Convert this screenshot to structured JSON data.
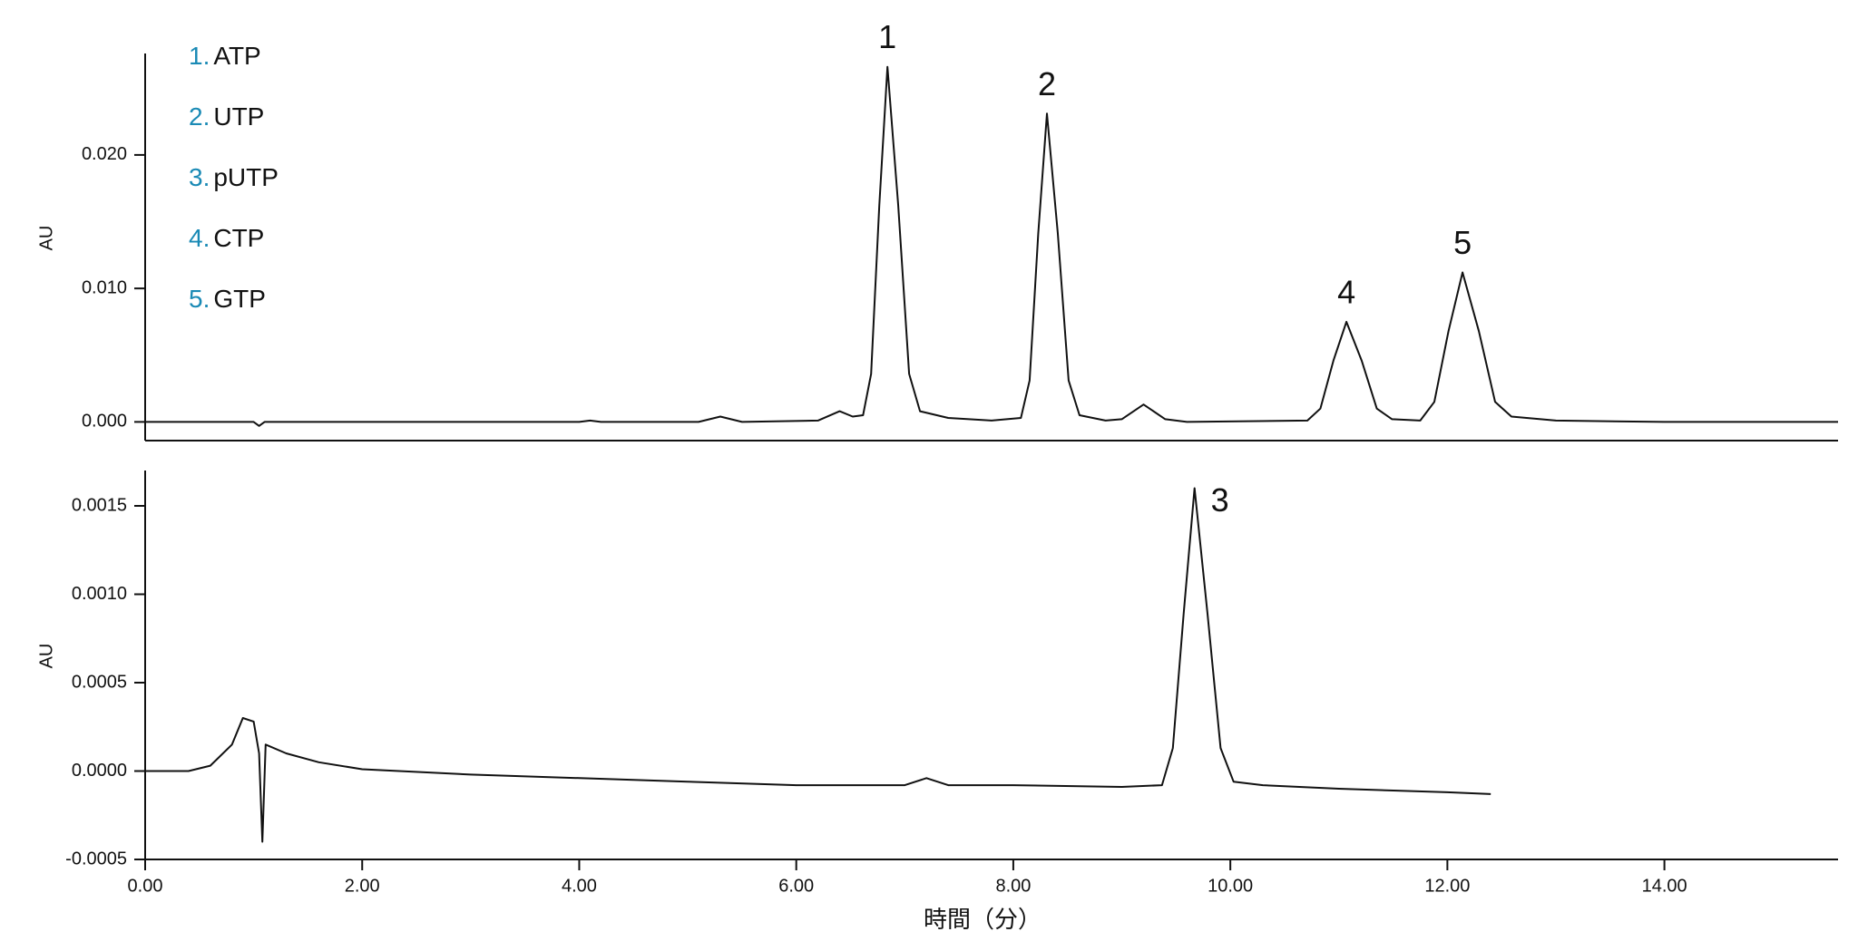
{
  "chart_data": [
    {
      "type": "line",
      "y_label": "AU",
      "xlim": [
        0,
        15.6
      ],
      "ylim": [
        -0.0014,
        0.0276
      ],
      "yticks": [
        {
          "value": 0,
          "label": "0.000"
        },
        {
          "value": 0.01,
          "label": "0.010"
        },
        {
          "value": 0.02,
          "label": "0.020"
        }
      ],
      "legend_items": [
        {
          "number": "1.",
          "name": "ATP"
        },
        {
          "number": "2.",
          "name": "UTP"
        },
        {
          "number": "3.",
          "name": "pUTP"
        },
        {
          "number": "4.",
          "name": "CTP"
        },
        {
          "number": "5.",
          "name": "GTP"
        }
      ],
      "legend_number_color": "#1a8ab5",
      "annotations": [
        "1",
        "2",
        "4",
        "5"
      ],
      "series": [
        {
          "color": "#111111",
          "x": [
            0,
            1.0,
            1.05,
            1.1,
            4.0,
            4.1,
            4.2,
            5.1,
            5.3,
            5.5,
            6.2,
            6.4,
            6.52,
            6.615,
            6.69,
            6.765,
            6.84,
            6.94,
            7.04,
            7.14,
            7.4,
            7.8,
            8.07,
            8.15,
            8.23,
            8.31,
            8.41,
            8.51,
            8.61,
            8.85,
            9.0,
            9.2,
            9.4,
            9.6,
            10.71,
            10.83,
            10.95,
            11.07,
            11.21,
            11.35,
            11.49,
            11.75,
            11.88,
            12.01,
            12.14,
            12.29,
            12.44,
            12.59,
            13.0,
            14.0,
            15.6
          ],
          "values": [
            0,
            0,
            -0.0003,
            0,
            0,
            0.0001,
            0,
            0,
            0.0004,
            0,
            0.0001,
            0.0008,
            0.0004,
            0.0005,
            0.0036,
            0.0162,
            0.0266,
            0.0162,
            0.0036,
            0.0008,
            0.0003,
            0.0001,
            0.0003,
            0.0031,
            0.0141,
            0.0231,
            0.0141,
            0.0031,
            0.0005,
            0.0001,
            0.0002,
            0.0013,
            0.0002,
            0,
            0.0001,
            0.001,
            0.0046,
            0.0075,
            0.0046,
            0.001,
            0.0002,
            0.0001,
            0.0015,
            0.0068,
            0.0112,
            0.0068,
            0.0015,
            0.0004,
            0.0001,
            0,
            0
          ]
        }
      ]
    },
    {
      "type": "line",
      "y_label": "AU",
      "x_label": "時間（分）",
      "xlim": [
        0,
        15.6
      ],
      "ylim": [
        -0.0005,
        0.0017
      ],
      "xticks": [
        {
          "value": 0,
          "label": "0.00"
        },
        {
          "value": 2,
          "label": "2.00"
        },
        {
          "value": 4,
          "label": "4.00"
        },
        {
          "value": 6,
          "label": "6.00"
        },
        {
          "value": 8,
          "label": "8.00"
        },
        {
          "value": 10,
          "label": "10.00"
        },
        {
          "value": 12,
          "label": "12.00"
        },
        {
          "value": 14,
          "label": "14.00"
        }
      ],
      "yticks": [
        -0.0005,
        {
          "value": 0,
          "label": "0.0000"
        },
        0.0005,
        {
          "value": 0.001,
          "label": "0.0010"
        },
        0.0015
      ],
      "annotations": [
        "3"
      ],
      "series": [
        {
          "color": "#111111",
          "x": [
            0,
            0.4,
            0.6,
            0.8,
            0.9,
            1.0,
            1.05,
            1.08,
            1.11,
            1.3,
            1.6,
            2.0,
            3.0,
            4.0,
            5.0,
            6.0,
            7.0,
            7.2,
            7.4,
            8.0,
            9.0,
            9.37,
            9.47,
            9.57,
            9.67,
            9.79,
            9.91,
            10.03,
            10.3,
            11.0,
            12.0,
            12.4
          ],
          "values": [
            0,
            0,
            3e-05,
            0.00015,
            0.0003,
            0.00028,
            0.0001,
            -0.0004,
            0.00015,
            0.0001,
            5e-05,
            1e-05,
            -2e-05,
            -4e-05,
            -6e-05,
            -8e-05,
            -8e-05,
            -4e-05,
            -8e-05,
            -8e-05,
            -9e-05,
            -8e-05,
            0.00013,
            0.00089,
            0.0016,
            0.00089,
            0.00013,
            -6e-05,
            -8e-05,
            -0.0001,
            -0.00012,
            -0.00013
          ]
        }
      ]
    }
  ]
}
